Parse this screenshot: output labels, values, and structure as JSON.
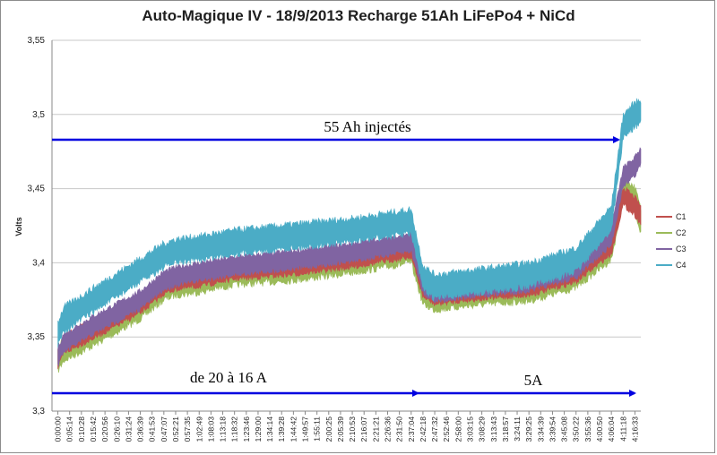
{
  "chart_data": {
    "type": "line",
    "title": "Auto-Magique IV - 18/9/2013 Recharge 51Ah LiFePo4 + NiCd",
    "ylabel": "Volts",
    "xlabel": "",
    "ylim": [
      3.3,
      3.55
    ],
    "yticks": [
      "3,3",
      "3,35",
      "3,4",
      "3,45",
      "3,5",
      "3,55"
    ],
    "ytick_values": [
      3.3,
      3.35,
      3.4,
      3.45,
      3.5,
      3.55
    ],
    "grid": true,
    "legend_position": "right",
    "x_tick_labels": [
      "0:00:00",
      "0:05:14",
      "0:10:28",
      "0:15:42",
      "0:20:56",
      "0:26:10",
      "0:31:24",
      "0:36:39",
      "0:41:53",
      "0:47:07",
      "0:52:21",
      "0:57:35",
      "1:02:49",
      "1:08:03",
      "1:13:18",
      "1:18:32",
      "1:23:46",
      "1:29:00",
      "1:34:14",
      "1:39:28",
      "1:44:42",
      "1:49:57",
      "1:55:11",
      "2:00:25",
      "2:05:39",
      "2:10:53",
      "2:16:07",
      "2:21:21",
      "2:26:36",
      "2:31:50",
      "2:37:04",
      "2:42:18",
      "2:47:32",
      "2:52:46",
      "2:58:00",
      "3:03:15",
      "3:08:29",
      "3:13:43",
      "3:18:57",
      "3:24:11",
      "3:29:25",
      "3:34:39",
      "3:39:54",
      "3:45:08",
      "3:50:22",
      "3:55:36",
      "4:00:50",
      "4:06:04",
      "4:11:18",
      "4:16:33"
    ],
    "series": [
      {
        "name": "C1",
        "color": "#c0504d",
        "x": [
          0,
          0.5,
          3,
          7,
          9,
          10,
          12,
          15,
          20,
          25,
          30,
          31,
          32,
          33,
          35,
          40,
          44,
          47,
          48,
          49,
          49.5
        ],
        "y_mid": [
          3.335,
          3.345,
          3.355,
          3.372,
          3.385,
          3.388,
          3.39,
          3.395,
          3.398,
          3.403,
          3.41,
          3.383,
          3.378,
          3.379,
          3.381,
          3.384,
          3.393,
          3.412,
          3.445,
          3.438,
          3.432
        ],
        "y_spread": 0.006
      },
      {
        "name": "C2",
        "color": "#9bbb59",
        "x": [
          0,
          0.5,
          3,
          7,
          9,
          10,
          12,
          15,
          20,
          25,
          30,
          31,
          32,
          33,
          35,
          40,
          44,
          47,
          48,
          49,
          49.5
        ],
        "y_mid": [
          3.335,
          3.342,
          3.352,
          3.37,
          3.383,
          3.386,
          3.388,
          3.393,
          3.396,
          3.401,
          3.408,
          3.38,
          3.376,
          3.377,
          3.379,
          3.382,
          3.391,
          3.41,
          3.45,
          3.443,
          3.428
        ],
        "y_spread": 0.008
      },
      {
        "name": "C3",
        "color": "#8064a2",
        "x": [
          0,
          0.5,
          3,
          7,
          9,
          10,
          12,
          15,
          20,
          25,
          30,
          31,
          32,
          33,
          35,
          40,
          44,
          47,
          48,
          49,
          49.5
        ],
        "y_mid": [
          3.337,
          3.346,
          3.358,
          3.375,
          3.388,
          3.391,
          3.394,
          3.398,
          3.402,
          3.407,
          3.414,
          3.386,
          3.38,
          3.381,
          3.383,
          3.387,
          3.396,
          3.418,
          3.458,
          3.465,
          3.472
        ],
        "y_spread": 0.006
      },
      {
        "name": "C4",
        "color": "#4bacc6",
        "x": [
          0,
          0.5,
          3,
          7,
          9,
          10,
          12,
          15,
          20,
          25,
          30,
          31,
          32,
          33,
          35,
          40,
          44,
          47,
          48,
          49,
          49.5
        ],
        "y_mid": [
          3.352,
          3.362,
          3.375,
          3.395,
          3.405,
          3.408,
          3.41,
          3.414,
          3.418,
          3.422,
          3.428,
          3.39,
          3.384,
          3.385,
          3.387,
          3.392,
          3.402,
          3.43,
          3.492,
          3.5,
          3.502
        ],
        "y_spread": 0.008
      }
    ],
    "annotations": [
      {
        "text": "55 Ah injectés"
      },
      {
        "text": "de 20 à 16 A"
      },
      {
        "text": "5A"
      }
    ]
  }
}
